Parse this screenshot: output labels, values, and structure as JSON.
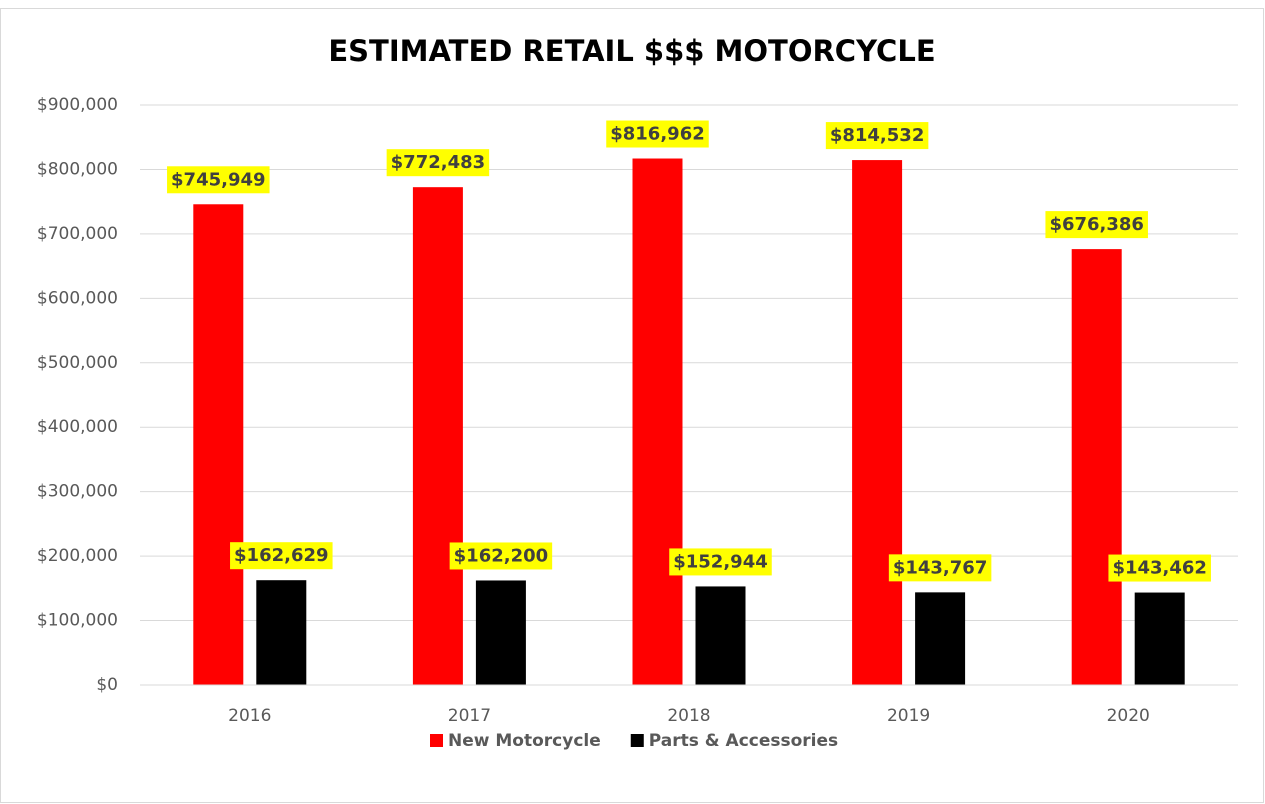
{
  "chart_data": {
    "type": "bar",
    "title": "ESTIMATED RETAIL $$$ MOTORCYCLE",
    "categories": [
      "2016",
      "2017",
      "2018",
      "2019",
      "2020"
    ],
    "series": [
      {
        "name": "New Motorcycle",
        "color": "#ff0000",
        "values": [
          745949,
          772483,
          816962,
          814532,
          676386
        ],
        "value_labels": [
          "$745,949",
          "$772,483",
          "$816,962",
          "$814,532",
          "$676,386"
        ]
      },
      {
        "name": "Parts & Accessories",
        "color": "#000000",
        "values": [
          162629,
          162200,
          152944,
          143767,
          143462
        ],
        "value_labels": [
          "$162,629",
          "$162,200",
          "$152,944",
          "$143,767",
          "$143,462"
        ]
      }
    ],
    "ylim": [
      0,
      900000
    ],
    "yticks": [
      {
        "value": 0,
        "label": "$0"
      },
      {
        "value": 100000,
        "label": "$100,000"
      },
      {
        "value": 200000,
        "label": "$200,000"
      },
      {
        "value": 300000,
        "label": "$300,000"
      },
      {
        "value": 400000,
        "label": "$400,000"
      },
      {
        "value": 500000,
        "label": "$500,000"
      },
      {
        "value": 600000,
        "label": "$600,000"
      },
      {
        "value": 700000,
        "label": "$700,000"
      },
      {
        "value": 800000,
        "label": "$800,000"
      },
      {
        "value": 900000,
        "label": "$900,000"
      }
    ],
    "grid": true,
    "legend": "bottom",
    "label_background": "#ffff00"
  }
}
